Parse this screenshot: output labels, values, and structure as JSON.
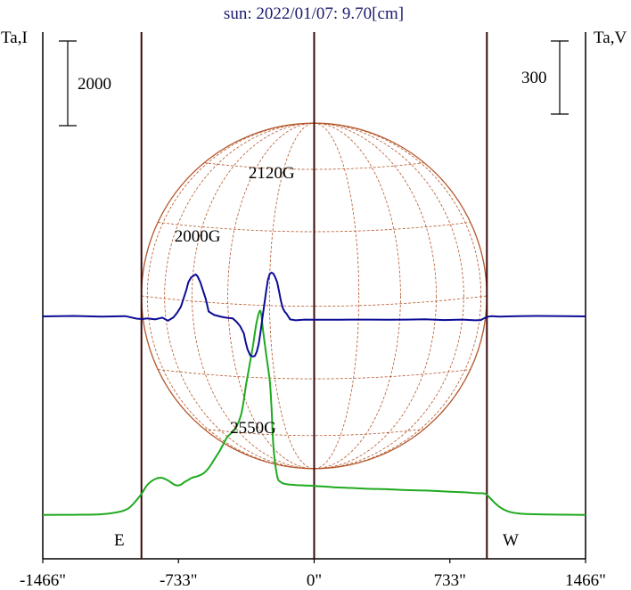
{
  "chart_data": {
    "type": "line",
    "title": "sun: 2022/01/07: 9.70[cm]",
    "y_left_label": "Ta,I",
    "y_right_label": "Ta,V",
    "scale_left": "2000",
    "scale_right": "300",
    "x_ticks": [
      "-1466\"",
      "-733\"",
      "0\"",
      "733\"",
      "1466\""
    ],
    "x_tick_values": [
      -1466,
      -733,
      0,
      733,
      1466
    ],
    "xlim": [
      -1466,
      1466
    ],
    "limb_lines": [
      -933,
      0,
      933
    ],
    "limb_labels": {
      "east": "E",
      "west": "W"
    },
    "annotations": [
      {
        "text": "2000G",
        "x": -630
      },
      {
        "text": "2120G",
        "x": -230
      },
      {
        "text": "2550G",
        "x": -330
      }
    ],
    "grid": false,
    "series": [
      {
        "key": "I",
        "color": "#1faa1f",
        "x": [
          -1466,
          -1300,
          -1150,
          -1050,
          -1000,
          -960,
          -930,
          -900,
          -860,
          -825,
          -790,
          -760,
          -740,
          -720,
          -700,
          -680,
          -660,
          -630,
          -600,
          -570,
          -540,
          -510,
          -490,
          -470,
          -440,
          -420,
          -395,
          -380,
          -370,
          -360,
          -350,
          -330,
          -310,
          -290,
          -275,
          -260,
          -240,
          -230,
          -220,
          -200,
          -180,
          -160,
          -130,
          -100,
          -50,
          0,
          100,
          200,
          300,
          400,
          500,
          600,
          700,
          800,
          870,
          920,
          940,
          980,
          1020,
          1060,
          1100,
          1150,
          1250,
          1466
        ],
        "y": [
          -15,
          -13,
          0,
          60,
          150,
          330,
          500,
          700,
          830,
          860,
          800,
          710,
          680,
          700,
          760,
          810,
          860,
          900,
          960,
          1090,
          1290,
          1500,
          1660,
          1820,
          1950,
          2060,
          2350,
          2700,
          3000,
          3250,
          3500,
          4000,
          4550,
          4800,
          4300,
          3800,
          3150,
          2500,
          1600,
          900,
          760,
          720,
          700,
          690,
          680,
          670,
          640,
          620,
          600,
          590,
          570,
          560,
          540,
          520,
          500,
          490,
          430,
          250,
          120,
          50,
          20,
          5,
          -5,
          -15
        ],
        "draw": "bezier"
      },
      {
        "key": "V",
        "color": "#0c0c96",
        "x": [
          -1466,
          -1300,
          -1150,
          -1020,
          -960,
          -930,
          -900,
          -860,
          -820,
          -790,
          -760,
          -740,
          -720,
          -705,
          -690,
          -680,
          -665,
          -650,
          -640,
          -630,
          -615,
          -600,
          -585,
          -570,
          -540,
          -500,
          -470,
          -440,
          -420,
          -400,
          -380,
          -370,
          -360,
          -345,
          -330,
          -320,
          -310,
          -300,
          -290,
          -280,
          -270,
          -260,
          -250,
          -240,
          -230,
          -220,
          -210,
          -200,
          -190,
          -180,
          -170,
          -160,
          -150,
          -130,
          -100,
          -50,
          0,
          100,
          200,
          300,
          400,
          500,
          600,
          700,
          800,
          870,
          900,
          920,
          940,
          960,
          1000,
          1100,
          1200,
          1466
        ],
        "y": [
          0,
          2,
          -1,
          1,
          -9,
          -11,
          -8,
          -12,
          -5,
          -18,
          -4,
          15,
          40,
          75,
          110,
          140,
          160,
          168,
          172,
          165,
          140,
          105,
          70,
          20,
          6,
          -2,
          -6,
          -8,
          -22,
          -40,
          -70,
          -105,
          -135,
          -160,
          -165,
          -162,
          -145,
          -115,
          -65,
          -10,
          45,
          100,
          150,
          175,
          180,
          175,
          160,
          140,
          105,
          65,
          35,
          20,
          12,
          -12,
          -16,
          -13,
          -14,
          -14,
          -13,
          -13,
          -14,
          -13,
          -12,
          -15,
          -13,
          -16,
          -15,
          -7,
          -1,
          1,
          -1,
          1,
          2,
          0
        ],
        "draw": "linear"
      }
    ]
  }
}
